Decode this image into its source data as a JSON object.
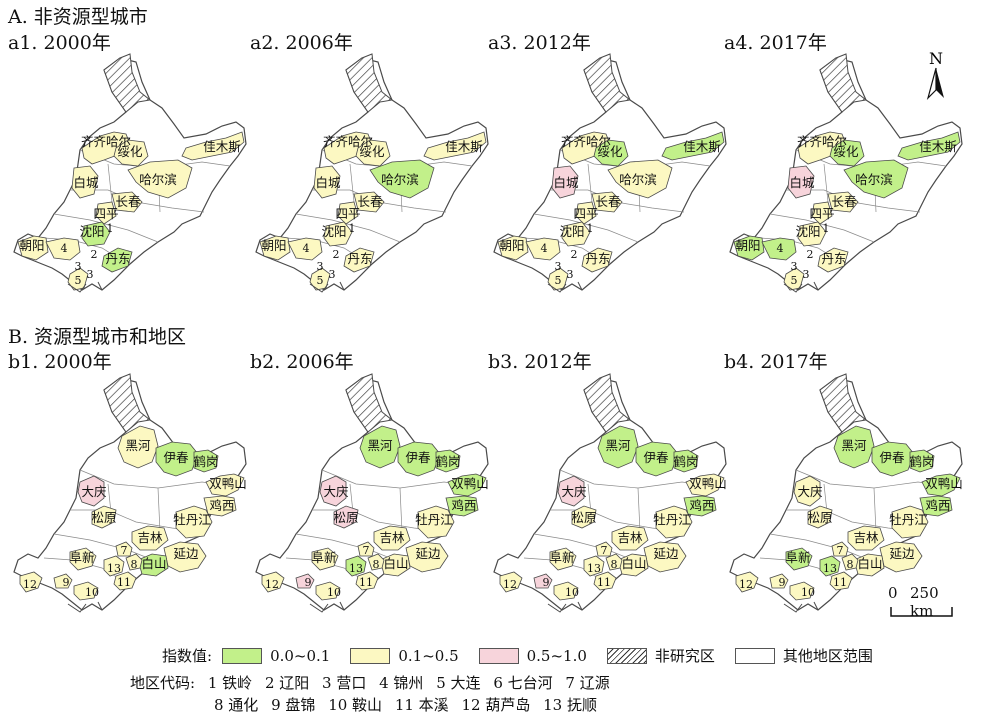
{
  "section_a": "A. 非资源型城市",
  "section_b": "B. 资源型城市和地区",
  "panels_a": [
    {
      "title": "a1. 2000年",
      "fills": {
        "qiqihar": "yel",
        "suihua": "yel",
        "jiamusi": "yel",
        "harbin": "yel",
        "baicheng": "yel",
        "changchun": "yel",
        "siping": "yel",
        "shenyang": "grn",
        "chaoyang": "yel",
        "dandong": "grn",
        "dalian": "yel",
        "southwest": "yel"
      }
    },
    {
      "title": "a2. 2006年",
      "fills": {
        "qiqihar": "yel",
        "suihua": "yel",
        "jiamusi": "yel",
        "harbin": "grn",
        "baicheng": "yel",
        "changchun": "yel",
        "siping": "yel",
        "shenyang": "yel",
        "chaoyang": "yel",
        "dandong": "yel",
        "dalian": "yel",
        "southwest": "yel"
      }
    },
    {
      "title": "a3. 2012年",
      "fills": {
        "qiqihar": "yel",
        "suihua": "grn",
        "jiamusi": "grn",
        "harbin": "yel",
        "baicheng": "pnk",
        "changchun": "yel",
        "siping": "yel",
        "shenyang": "yel",
        "chaoyang": "yel",
        "dandong": "yel",
        "dalian": "yel",
        "southwest": "yel"
      }
    },
    {
      "title": "a4. 2017年",
      "fills": {
        "qiqihar": "yel",
        "suihua": "grn",
        "jiamusi": "grn",
        "harbin": "grn",
        "baicheng": "pnk",
        "changchun": "yel",
        "siping": "yel",
        "shenyang": "yel",
        "chaoyang": "grn",
        "dandong": "yel",
        "dalian": "yel",
        "southwest": "grn"
      }
    }
  ],
  "panels_b": [
    {
      "title": "b1. 2000年",
      "fills": {
        "heihe": "yel",
        "yichun": "grn",
        "hegang": "grn",
        "daqing": "pnk",
        "shuangyashan": "yel",
        "jixi": "yel",
        "songyuan": "yel",
        "mudanjiang": "yel",
        "jilin": "yel",
        "yanbian": "yel",
        "baishan": "grn",
        "fuxin": "yel",
        "c12": "yel",
        "c9": "yel",
        "c10": "yel",
        "c13": "yel",
        "c11": "yel",
        "c8": "yel",
        "c7": "yel"
      }
    },
    {
      "title": "b2. 2006年",
      "fills": {
        "heihe": "grn",
        "yichun": "grn",
        "hegang": "grn",
        "daqing": "pnk",
        "shuangyashan": "grn",
        "jixi": "grn",
        "songyuan": "pnk",
        "mudanjiang": "yel",
        "jilin": "yel",
        "yanbian": "yel",
        "baishan": "yel",
        "fuxin": "yel",
        "c12": "yel",
        "c9": "pnk",
        "c10": "yel",
        "c13": "grn",
        "c11": "yel",
        "c8": "yel",
        "c7": "yel"
      }
    },
    {
      "title": "b3. 2012年",
      "fills": {
        "heihe": "grn",
        "yichun": "grn",
        "hegang": "grn",
        "daqing": "pnk",
        "shuangyashan": "yel",
        "jixi": "grn",
        "songyuan": "yel",
        "mudanjiang": "yel",
        "jilin": "yel",
        "yanbian": "yel",
        "baishan": "yel",
        "fuxin": "yel",
        "c12": "yel",
        "c9": "pnk",
        "c10": "yel",
        "c13": "yel",
        "c11": "yel",
        "c8": "yel",
        "c7": "yel"
      }
    },
    {
      "title": "b4. 2017年",
      "fills": {
        "heihe": "grn",
        "yichun": "grn",
        "hegang": "grn",
        "daqing": "yel",
        "shuangyashan": "grn",
        "jixi": "grn",
        "songyuan": "yel",
        "mudanjiang": "yel",
        "jilin": "yel",
        "yanbian": "yel",
        "baishan": "yel",
        "fuxin": "grn",
        "c12": "yel",
        "c9": "yel",
        "c10": "yel",
        "c13": "grn",
        "c11": "yel",
        "c8": "yel",
        "c7": "yel"
      }
    }
  ],
  "labels_a": {
    "qiqihar": "齐齐哈尔",
    "suihua": "绥化",
    "jiamusi": "佳木斯",
    "harbin": "哈尔滨",
    "baicheng": "白城",
    "changchun": "长春",
    "siping": "四平",
    "shenyang": "沈阳",
    "chaoyang": "朝阳",
    "dandong": "丹东"
  },
  "labels_b": {
    "heihe": "黑河",
    "yichun": "伊春",
    "hegang": "鹤岗",
    "daqing": "大庆",
    "shuangyashan": "双鸭山",
    "jixi": "鸡西",
    "songyuan": "松原",
    "mudanjiang": "牡丹江",
    "jilin": "吉林",
    "yanbian": "延边",
    "baishan": "白山",
    "fuxin": "阜新"
  },
  "colors": {
    "grn": "#c2f08a",
    "yel": "#fcf8c2",
    "pnk": "#f7d4db",
    "white": "#ffffff",
    "stroke": "#4a4a4a"
  },
  "legend": {
    "label": "指数值:",
    "items": [
      {
        "swatch": "grn",
        "text": "0.0~0.1"
      },
      {
        "swatch": "yel",
        "text": "0.1~0.5"
      },
      {
        "swatch": "pnk",
        "text": "0.5~1.0"
      },
      {
        "swatch": "hatch",
        "text": "非研究区"
      },
      {
        "swatch": "white",
        "text": "其他地区范围"
      }
    ]
  },
  "region_codes": {
    "label": "地区代码:",
    "line1": [
      "1 铁岭",
      "2 辽阳",
      "3 营口",
      "4 锦州",
      "5 大连",
      "6 七台河",
      "7 辽源"
    ],
    "line2": [
      "8 通化",
      "9 盘锦",
      "10 鞍山",
      "11 本溪",
      "12 葫芦岛",
      "13 抚顺"
    ]
  },
  "north_label": "N",
  "scale": {
    "zero": "0",
    "text": "250 km"
  }
}
